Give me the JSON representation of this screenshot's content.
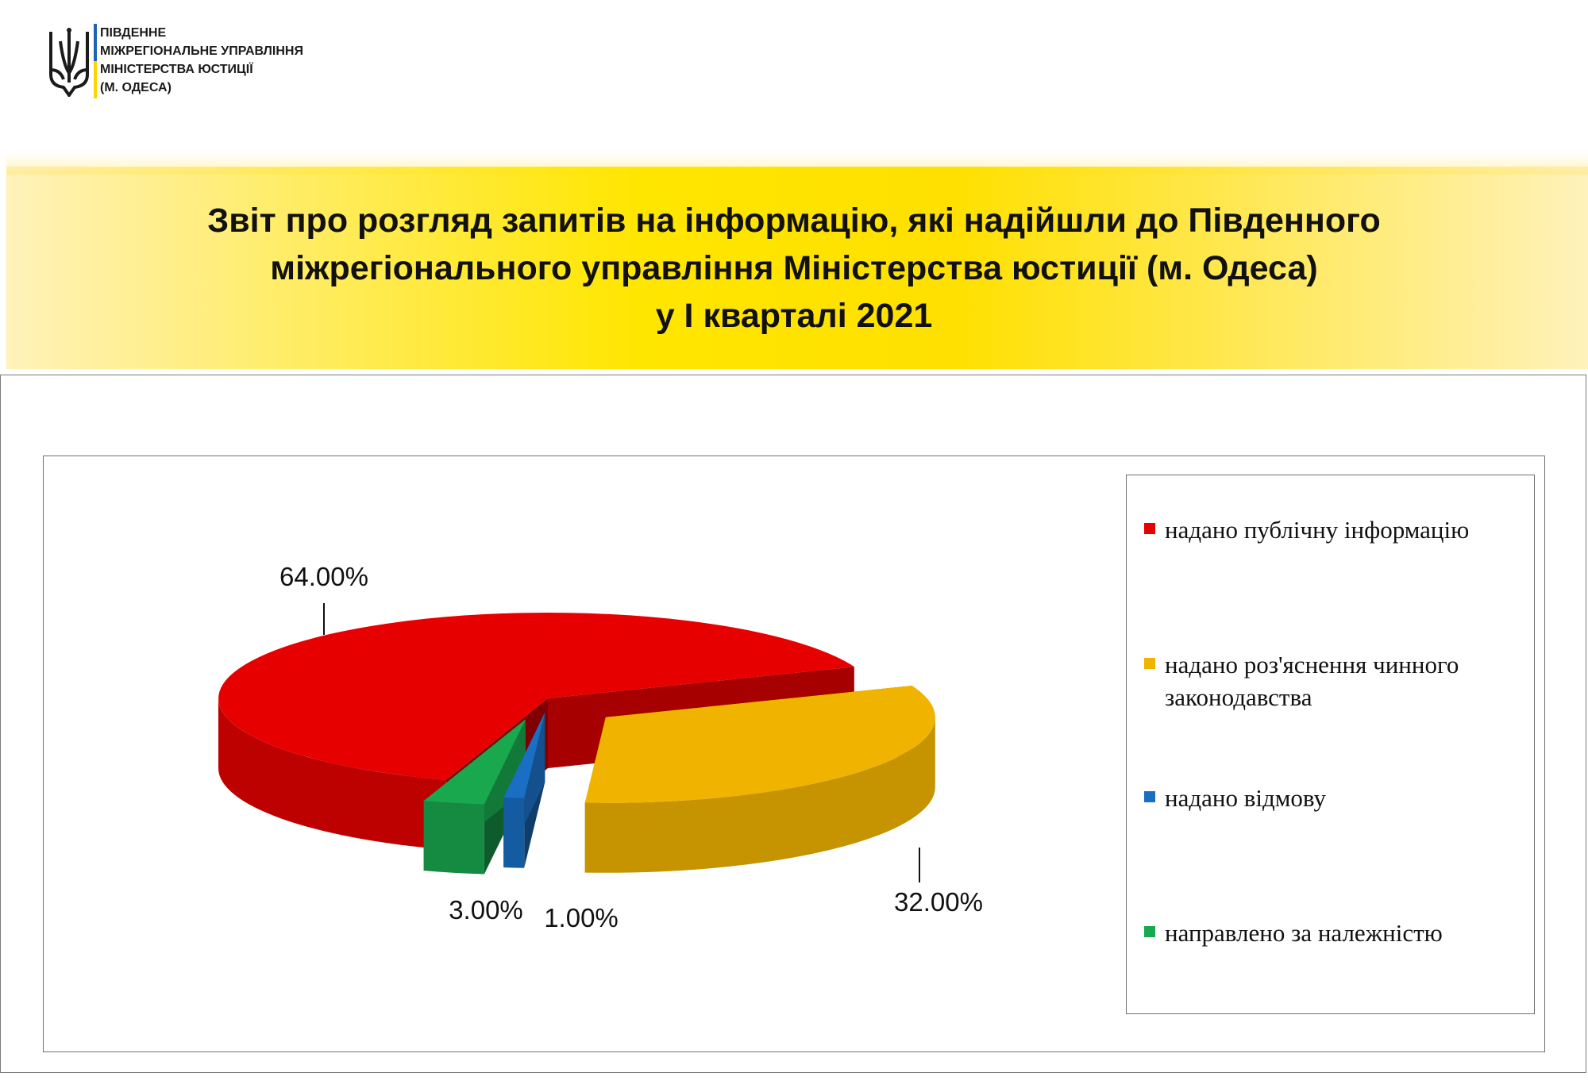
{
  "header": {
    "org_lines": [
      "ПІВДЕННЕ",
      "МІЖРЕГІОНАЛЬНЕ УПРАВЛІННЯ",
      "МІНІСТЕРСТВА ЮСТИЦІЇ",
      "(М. ОДЕСА)"
    ],
    "emblem_icon": "trident-icon",
    "flag_colors": [
      "#1f64b4",
      "#ffd500"
    ]
  },
  "title_lines": [
    "Звіт про розгляд запитів на інформацію, які надійшли до Південного",
    "міжрегіонального управління Міністерства юстиції (м. Одеса)",
    "у І кварталі 2021"
  ],
  "chart_data": {
    "type": "pie",
    "style": "3d-exploded",
    "legend_position": "right",
    "categories": [
      "надано публічну інформацію",
      "надано роз'яснення чинного законодавства",
      "надано відмову",
      "направлено за належністю"
    ],
    "values": [
      64,
      32,
      1,
      3
    ],
    "data_labels": [
      "64.00%",
      "32.00%",
      "1.00%",
      "3.00%"
    ],
    "colors": [
      "#e60000",
      "#f0b400",
      "#1a6fc4",
      "#1aa84f"
    ]
  }
}
